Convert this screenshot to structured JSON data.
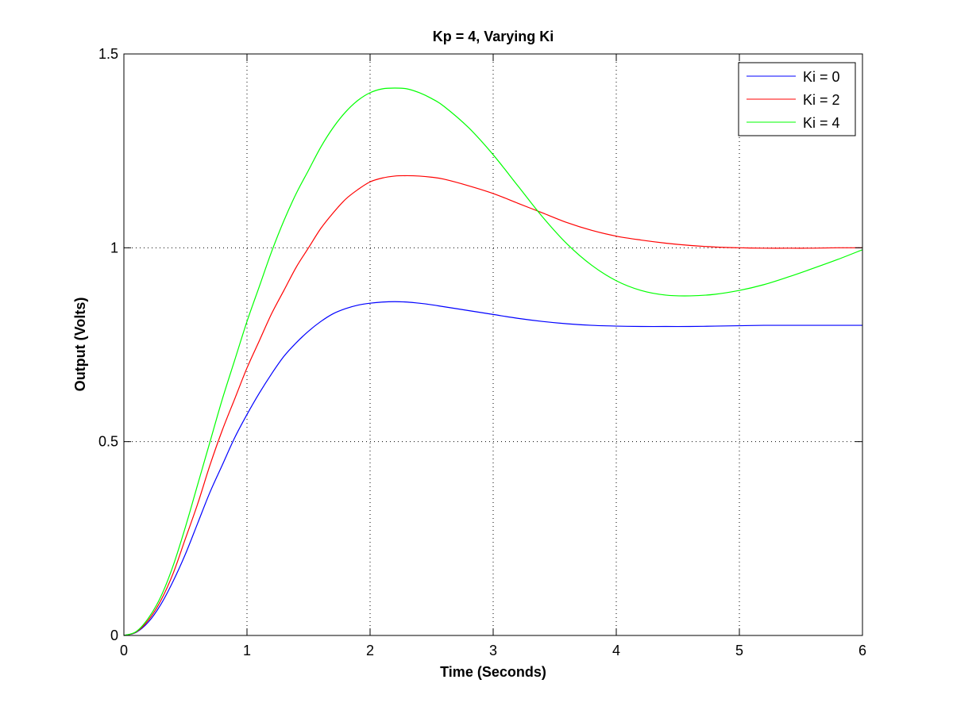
{
  "chart_data": {
    "type": "line",
    "title": "Kp = 4, Varying Ki",
    "xlabel": "Time (Seconds)",
    "ylabel": "Output (Volts)",
    "xlim": [
      0,
      6
    ],
    "ylim": [
      0,
      1.5
    ],
    "xticks": [
      0,
      1,
      2,
      3,
      4,
      5,
      6
    ],
    "yticks": [
      0,
      0.5,
      1,
      1.5
    ],
    "xtick_labels": [
      "0",
      "1",
      "2",
      "3",
      "4",
      "5",
      "6"
    ],
    "ytick_labels": [
      "0",
      "0.5",
      "1",
      "1.5"
    ],
    "grid": true,
    "legend_position": "top-right",
    "series": [
      {
        "name": "Ki = 0",
        "color": "#0000ff",
        "x": [
          0,
          0.1,
          0.2,
          0.3,
          0.4,
          0.5,
          0.6,
          0.7,
          0.8,
          0.9,
          1.0,
          1.1,
          1.2,
          1.3,
          1.4,
          1.5,
          1.6,
          1.7,
          1.8,
          1.9,
          2.0,
          2.1,
          2.2,
          2.3,
          2.4,
          2.5,
          2.6,
          2.8,
          3.0,
          3.2,
          3.4,
          3.6,
          3.8,
          4.0,
          4.2,
          4.4,
          4.6,
          4.8,
          5.0,
          5.2,
          5.4,
          5.6,
          5.8,
          6.0
        ],
        "y": [
          0,
          0.008,
          0.035,
          0.08,
          0.14,
          0.21,
          0.29,
          0.37,
          0.44,
          0.51,
          0.57,
          0.625,
          0.675,
          0.72,
          0.755,
          0.785,
          0.81,
          0.83,
          0.843,
          0.852,
          0.857,
          0.86,
          0.861,
          0.86,
          0.857,
          0.853,
          0.848,
          0.838,
          0.828,
          0.818,
          0.81,
          0.804,
          0.8,
          0.798,
          0.797,
          0.797,
          0.797,
          0.798,
          0.799,
          0.8,
          0.8,
          0.8,
          0.8,
          0.8
        ]
      },
      {
        "name": "Ki = 2",
        "color": "#ff0000",
        "x": [
          0,
          0.1,
          0.2,
          0.3,
          0.4,
          0.5,
          0.6,
          0.7,
          0.8,
          0.9,
          1.0,
          1.1,
          1.2,
          1.3,
          1.4,
          1.5,
          1.6,
          1.7,
          1.8,
          1.9,
          2.0,
          2.1,
          2.2,
          2.3,
          2.4,
          2.5,
          2.6,
          2.8,
          3.0,
          3.2,
          3.4,
          3.6,
          3.8,
          4.0,
          4.2,
          4.4,
          4.6,
          4.8,
          5.0,
          5.2,
          5.4,
          5.6,
          5.8,
          6.0
        ],
        "y": [
          0,
          0.009,
          0.04,
          0.09,
          0.16,
          0.25,
          0.34,
          0.44,
          0.53,
          0.61,
          0.69,
          0.76,
          0.83,
          0.89,
          0.95,
          1.0,
          1.05,
          1.09,
          1.125,
          1.15,
          1.17,
          1.18,
          1.185,
          1.186,
          1.185,
          1.182,
          1.177,
          1.16,
          1.14,
          1.115,
          1.09,
          1.065,
          1.045,
          1.03,
          1.02,
          1.012,
          1.006,
          1.002,
          1.0,
          0.999,
          0.999,
          0.999,
          1.0,
          1.0
        ]
      },
      {
        "name": "Ki = 4",
        "color": "#00ff00",
        "x": [
          0,
          0.1,
          0.2,
          0.3,
          0.4,
          0.5,
          0.6,
          0.7,
          0.8,
          0.9,
          1.0,
          1.1,
          1.2,
          1.3,
          1.4,
          1.5,
          1.6,
          1.7,
          1.8,
          1.9,
          2.0,
          2.1,
          2.2,
          2.3,
          2.4,
          2.5,
          2.6,
          2.8,
          3.0,
          3.2,
          3.4,
          3.6,
          3.8,
          4.0,
          4.2,
          4.4,
          4.6,
          4.8,
          5.0,
          5.2,
          5.4,
          5.6,
          5.8,
          6.0
        ],
        "y": [
          0,
          0.01,
          0.045,
          0.1,
          0.18,
          0.28,
          0.39,
          0.5,
          0.61,
          0.71,
          0.81,
          0.9,
          0.99,
          1.07,
          1.14,
          1.2,
          1.26,
          1.31,
          1.35,
          1.38,
          1.4,
          1.41,
          1.412,
          1.41,
          1.4,
          1.385,
          1.365,
          1.31,
          1.24,
          1.16,
          1.08,
          1.01,
          0.955,
          0.915,
          0.89,
          0.878,
          0.876,
          0.88,
          0.89,
          0.905,
          0.925,
          0.947,
          0.97,
          0.995
        ]
      }
    ]
  }
}
